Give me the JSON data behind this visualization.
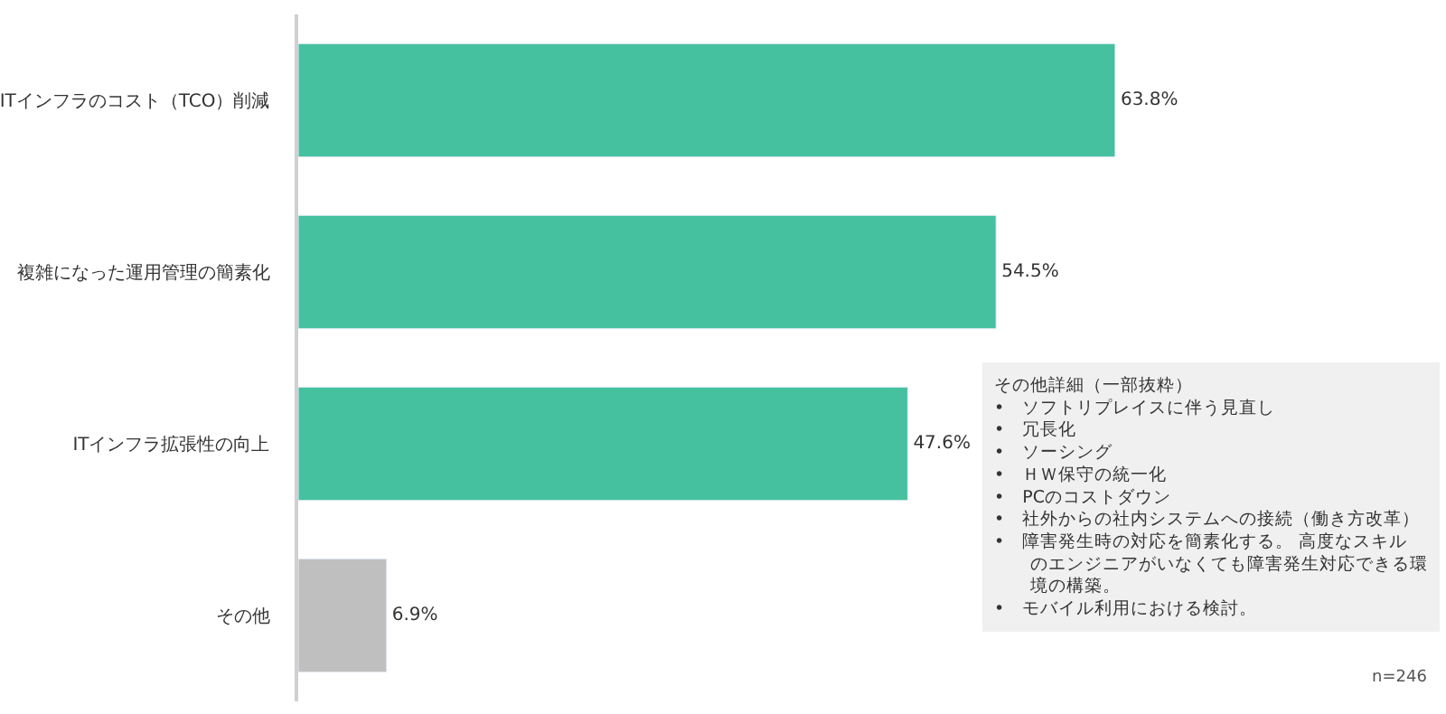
{
  "chart_data": {
    "type": "bar",
    "orientation": "horizontal",
    "categories": [
      "ITインフラのコスト（TCO）削減",
      "複雑になった運用管理の簡素化",
      "ITインフラ拡張性の向上",
      "その他"
    ],
    "values": [
      63.8,
      54.5,
      47.6,
      6.9
    ],
    "value_labels": [
      "63.8%",
      "54.5%",
      "47.6%",
      "6.9%"
    ],
    "colors": [
      "#45c1a0",
      "#45c1a0",
      "#45c1a0",
      "#bfbfbf"
    ],
    "legend": false,
    "annotations": [
      "その他詳細（一部抜粋）\n•　ソフトリプレイスに伴う見直し\n•　冗長化\n•　ソーシング\n•　ＨＷ保守の統一化\n•　PCのコストダウン\n•　社外からの社内システムへの接続（働き方改革）\n•　障害発生時の対応を簡素化する。 高度なスキルのエンジニアがいなくても障害発生対応できる環境の構築。\n•　モバイル利用における検討。",
      "n=246"
    ]
  }
}
